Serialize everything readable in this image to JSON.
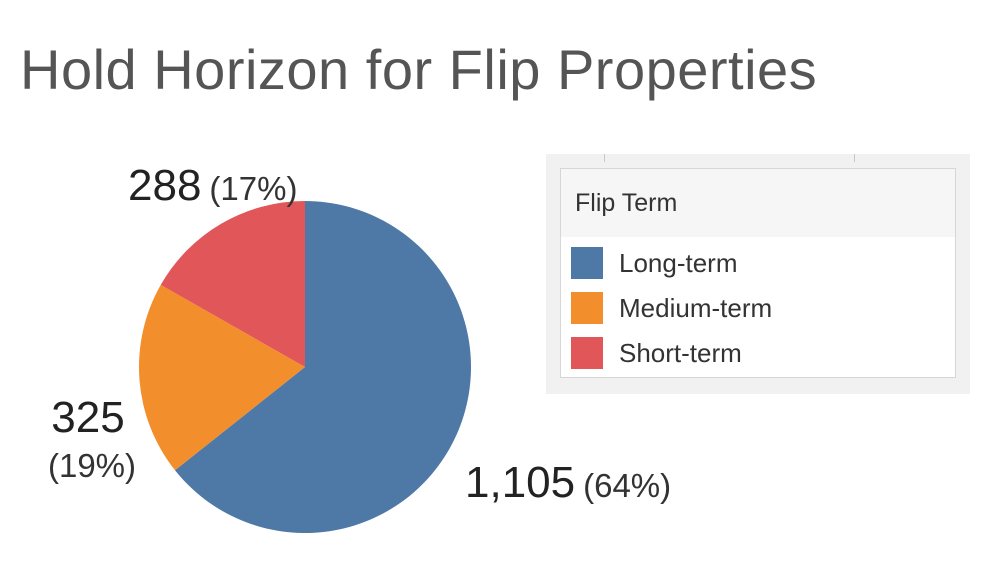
{
  "title": "Hold Horizon for Flip Properties",
  "legend": {
    "title": "Flip Term",
    "items": [
      {
        "label": "Long-term",
        "color": "#4e79a7"
      },
      {
        "label": "Medium-term",
        "color": "#f28e2b"
      },
      {
        "label": "Short-term",
        "color": "#e15759"
      }
    ]
  },
  "chart_data": {
    "type": "pie",
    "title": "Hold Horizon for Flip Properties",
    "legend_title": "Flip Term",
    "legend_placement": "right",
    "categories": [
      "Long-term",
      "Medium-term",
      "Short-term"
    ],
    "values": [
      1105,
      325,
      288
    ],
    "value_labels": [
      "1,105",
      "325",
      "288"
    ],
    "percent_labels": [
      "(64%)",
      "(19%)",
      "(17%)"
    ],
    "colors": [
      "#4e79a7",
      "#f28e2b",
      "#e15759"
    ],
    "start_angle_deg": 0,
    "direction": "clockwise"
  }
}
